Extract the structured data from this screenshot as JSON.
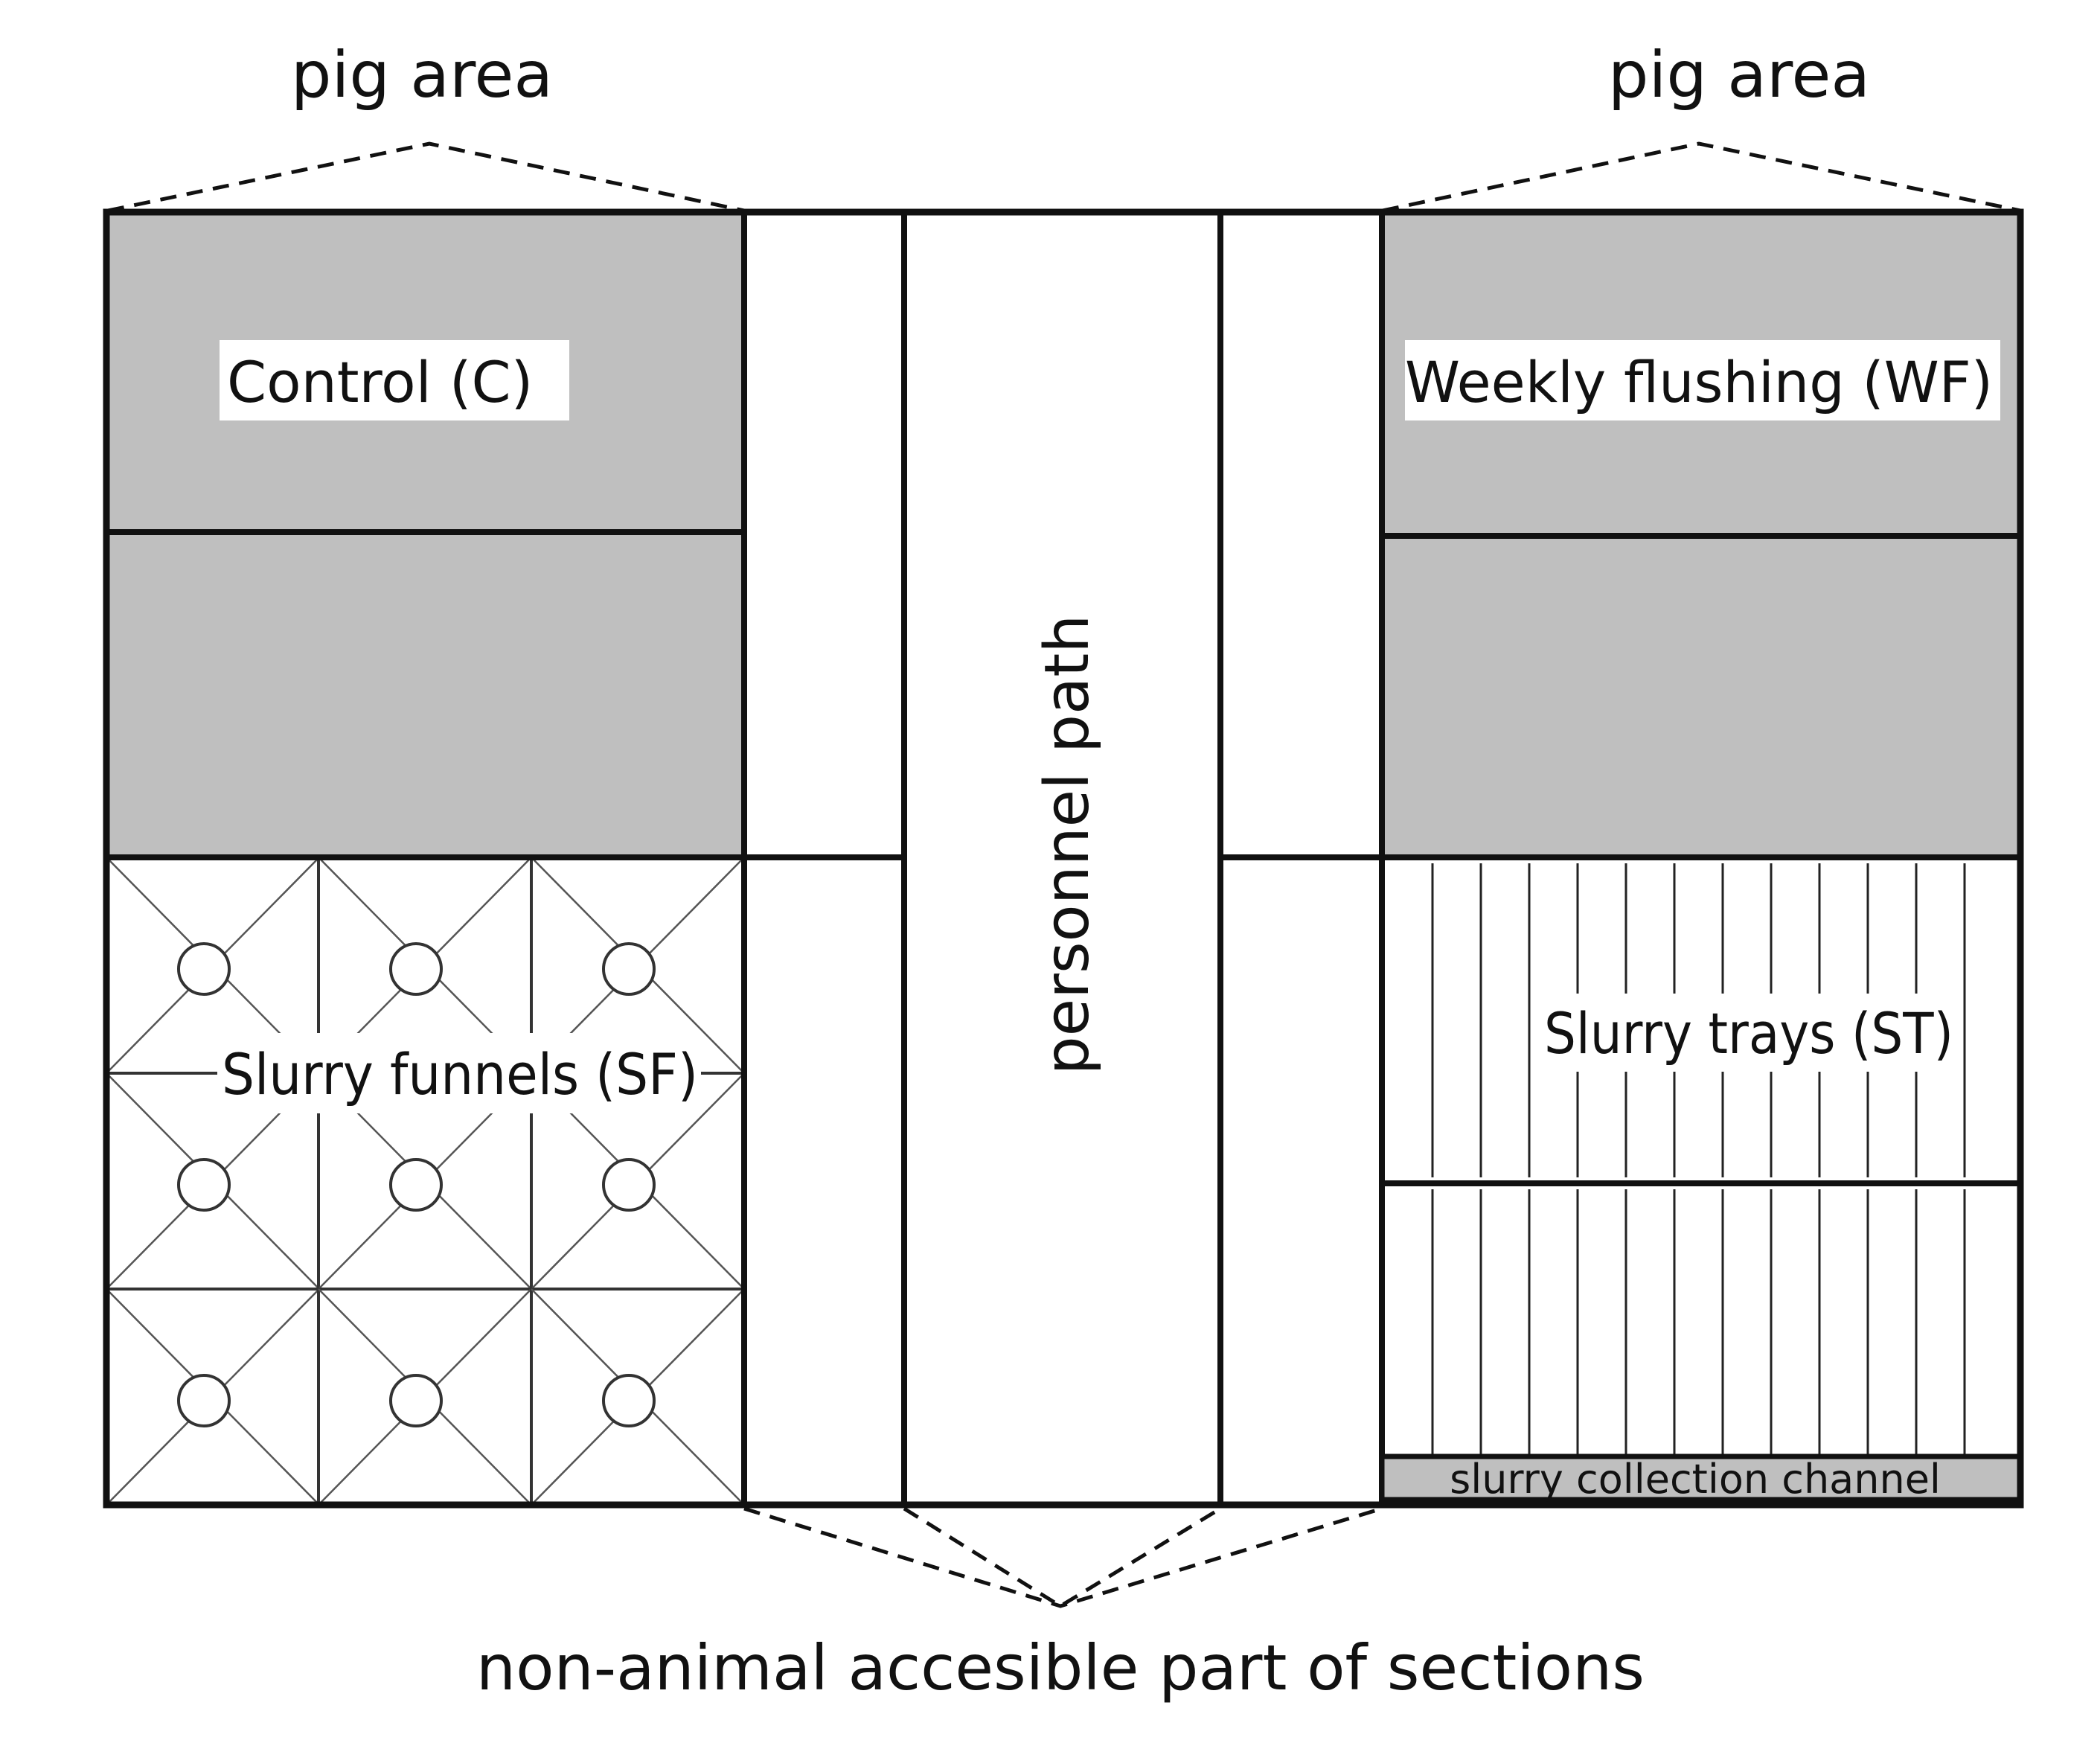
{
  "labels": {
    "pig_area_left": "pig area",
    "pig_area_right": "pig area",
    "control": "Control (C)",
    "weekly_flushing": "Weekly flushing (WF)",
    "personnel_path": "personnel path",
    "slurry_funnels": "Slurry funnels (SF)",
    "slurry_trays": "Slurry trays (ST)",
    "slurry_channel": "slurry collection channel",
    "non_animal": "non-animal accesible part of sections"
  },
  "colors": {
    "pen_fill": "#bfbfbf",
    "line": "#111111",
    "background": "#ffffff"
  }
}
